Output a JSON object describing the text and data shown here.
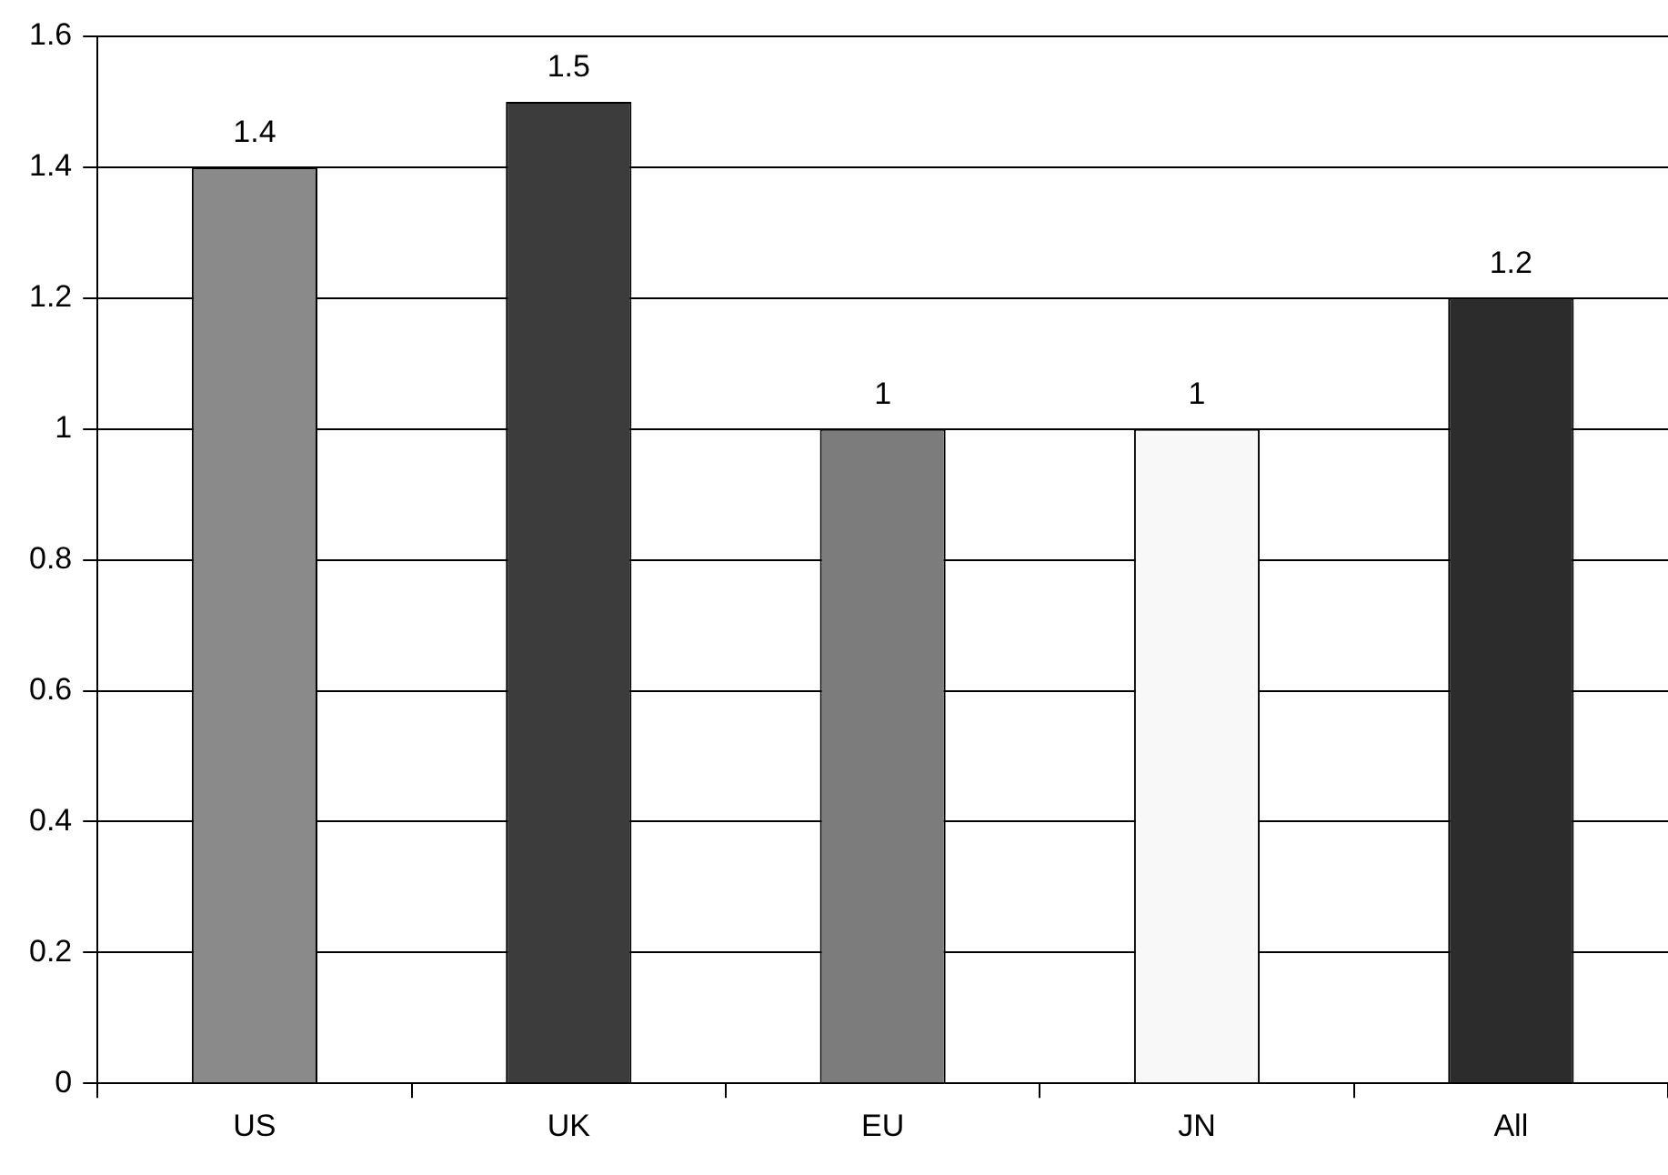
{
  "chart_data": {
    "type": "bar",
    "categories": [
      "US",
      "UK",
      "EU",
      "JN",
      "All"
    ],
    "values": [
      1.4,
      1.5,
      1,
      1,
      1.2
    ],
    "colors": [
      "#8a8a8a",
      "#3c3c3c",
      "#7c7c7c",
      "#f8f8f8",
      "#2c2c2c"
    ],
    "ylim": [
      0,
      1.6
    ],
    "yticks": [
      0,
      0.2,
      0.4,
      0.6,
      0.8,
      1,
      1.2,
      1.4,
      1.6
    ],
    "grid": "y",
    "legend": false,
    "data_labels": true
  }
}
